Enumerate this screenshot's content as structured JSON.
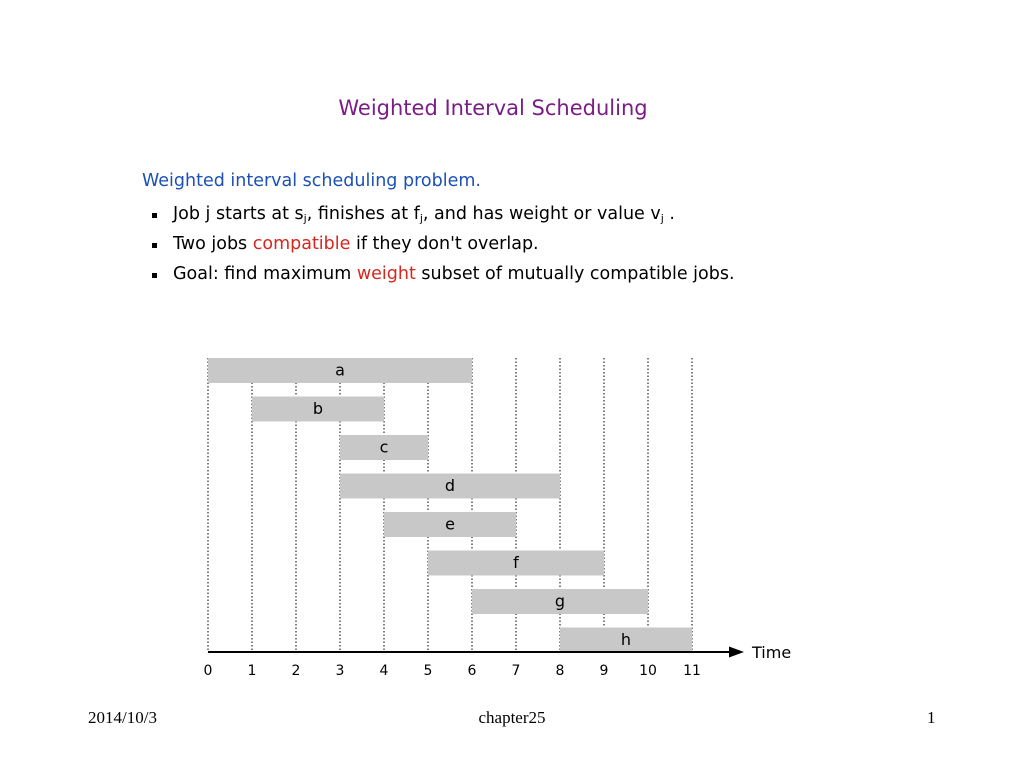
{
  "slide": {
    "title": "Weighted Interval Scheduling",
    "subtitle": "Weighted interval scheduling problem.",
    "bullets": [
      {
        "parts": [
          {
            "text": "Job j starts at s"
          },
          {
            "text": "j",
            "sub": true
          },
          {
            "text": ", finishes at f"
          },
          {
            "text": "j",
            "sub": true
          },
          {
            "text": ", and has weight or value v"
          },
          {
            "text": "j",
            "sub": true
          },
          {
            "text": " ."
          }
        ]
      },
      {
        "parts": [
          {
            "text": "Two jobs "
          },
          {
            "text": "compatible",
            "highlight": true
          },
          {
            "text": " if they don't overlap."
          }
        ]
      },
      {
        "parts": [
          {
            "text": "Goal:  find maximum "
          },
          {
            "text": "weight",
            "highlight": true
          },
          {
            "text": " subset of mutually compatible jobs."
          }
        ]
      }
    ],
    "colors": {
      "title": "#7a1e86",
      "subtitle": "#1c50b4",
      "highlight": "#d9261c",
      "bar_fill": "#c8c8c8"
    }
  },
  "chart_data": {
    "type": "gantt",
    "axis_label": "Time",
    "x_ticks": [
      0,
      1,
      2,
      3,
      4,
      5,
      6,
      7,
      8,
      9,
      10,
      11
    ],
    "jobs": [
      {
        "label": "a",
        "start": 0,
        "end": 6
      },
      {
        "label": "b",
        "start": 1,
        "end": 4
      },
      {
        "label": "c",
        "start": 3,
        "end": 5
      },
      {
        "label": "d",
        "start": 3,
        "end": 8
      },
      {
        "label": "e",
        "start": 4,
        "end": 7
      },
      {
        "label": "f",
        "start": 5,
        "end": 9
      },
      {
        "label": "g",
        "start": 6,
        "end": 10
      },
      {
        "label": "h",
        "start": 8,
        "end": 11
      }
    ],
    "gridlines": "dotted vertical at each tick"
  },
  "footer": {
    "date": "2014/10/3",
    "center": "chapter25",
    "page": "1"
  }
}
